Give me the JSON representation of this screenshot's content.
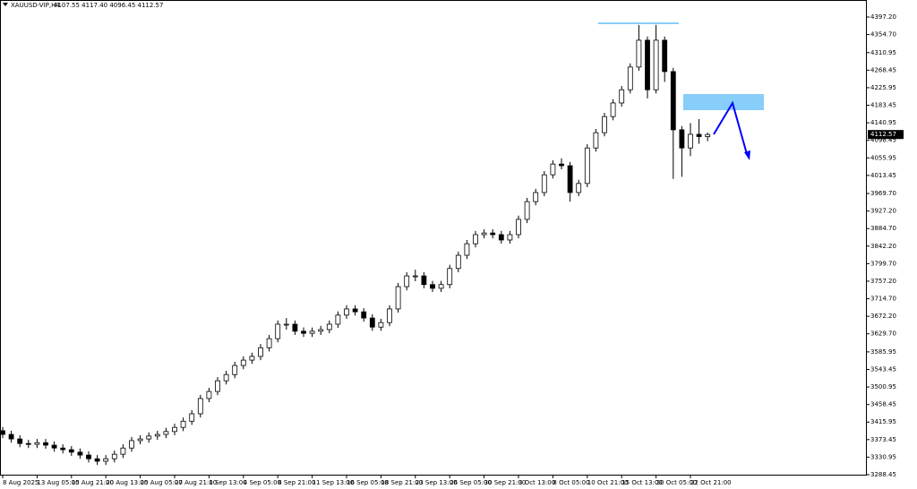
{
  "chart_data": {
    "type": "candlestick",
    "symbol": "XAUUSD-VIP,H4",
    "info": "4107.55 4117.40 4096.45 4112.57",
    "categories": [
      "8 Aug 2025",
      null,
      null,
      null,
      "13 Aug 05:00",
      null,
      null,
      null,
      "15 Aug 21:00",
      null,
      null,
      null,
      "20 Aug 13:00",
      null,
      null,
      null,
      "25 Aug 05:00",
      null,
      null,
      null,
      "27 Aug 21:00",
      null,
      null,
      null,
      "1 Sep 13:00",
      null,
      null,
      null,
      "4 Sep 05:00",
      null,
      null,
      null,
      "8 Sep 21:00",
      null,
      null,
      null,
      "11 Sep 13:00",
      null,
      null,
      null,
      "16 Sep 05:00",
      null,
      null,
      null,
      "18 Sep 21:00",
      null,
      null,
      null,
      "23 Sep 13:00",
      null,
      null,
      null,
      "26 Sep 05:00",
      null,
      null,
      null,
      "30 Sep 21:00",
      null,
      null,
      null,
      "3 Oct 13:00",
      null,
      null,
      null,
      "8 Oct 05:00",
      null,
      null,
      null,
      "10 Oct 21:00",
      null,
      null,
      null,
      "15 Oct 13:00",
      null,
      null,
      null,
      "20 Oct 05:00",
      null,
      null,
      null,
      "22 Oct 21:00",
      null,
      null
    ],
    "open": [
      3395,
      3386,
      3375,
      3364,
      3362,
      3366,
      3360,
      3353,
      3349,
      3343,
      3336,
      3327,
      3321,
      3327,
      3338,
      3353,
      3371,
      3375,
      3382,
      3386,
      3393,
      3403,
      3418,
      3436,
      3473,
      3490,
      3516,
      3531,
      3553,
      3566,
      3575,
      3596,
      3618,
      3653,
      3653,
      3636,
      3631,
      3636,
      3640,
      3653,
      3675,
      3690,
      3683,
      3668,
      3646,
      3657,
      3690,
      3744,
      3770,
      3770,
      3749,
      3740,
      3749,
      3788,
      3820,
      3848,
      3870,
      3874,
      3870,
      3857,
      3870,
      3907,
      3950,
      3972,
      4015,
      4041,
      4037,
      3972,
      3994,
      4080,
      4117,
      4156,
      4189,
      4221,
      4276,
      4341,
      4221,
      4341,
      4265,
      4124,
      4080,
      4113,
      4107.55
    ],
    "high": [
      3404,
      3395,
      3384,
      3373,
      3375,
      3375,
      3369,
      3362,
      3358,
      3352,
      3345,
      3336,
      3336,
      3347,
      3362,
      3380,
      3384,
      3391,
      3395,
      3402,
      3412,
      3427,
      3445,
      3482,
      3499,
      3525,
      3540,
      3562,
      3575,
      3584,
      3605,
      3627,
      3662,
      3668,
      3662,
      3645,
      3645,
      3649,
      3662,
      3684,
      3699,
      3699,
      3692,
      3677,
      3666,
      3699,
      3753,
      3779,
      3785,
      3779,
      3758,
      3758,
      3797,
      3829,
      3857,
      3879,
      3883,
      3883,
      3879,
      3879,
      3916,
      3959,
      3981,
      4024,
      4050,
      4055,
      4046,
      4003,
      4089,
      4126,
      4165,
      4198,
      4230,
      4285,
      4378,
      4350,
      4378,
      4350,
      4274,
      4133,
      4140,
      4150,
      4117.4
    ],
    "low": [
      3377,
      3366,
      3355,
      3353,
      3353,
      3351,
      3344,
      3340,
      3334,
      3327,
      3318,
      3312,
      3312,
      3318,
      3329,
      3344,
      3362,
      3366,
      3373,
      3377,
      3384,
      3394,
      3409,
      3427,
      3464,
      3481,
      3507,
      3522,
      3544,
      3557,
      3566,
      3587,
      3609,
      3640,
      3627,
      3622,
      3622,
      3627,
      3631,
      3644,
      3666,
      3674,
      3659,
      3637,
      3637,
      3648,
      3681,
      3735,
      3757,
      3740,
      3731,
      3731,
      3740,
      3779,
      3811,
      3839,
      3861,
      3861,
      3848,
      3848,
      3861,
      3898,
      3941,
      3963,
      4006,
      4028,
      3950,
      3963,
      3985,
      4071,
      4108,
      4147,
      4180,
      4212,
      4267,
      4200,
      4212,
      4240,
      4005,
      4010,
      4060,
      4090,
      4096.45
    ],
    "close": [
      3386,
      3375,
      3364,
      3362,
      3366,
      3360,
      3353,
      3349,
      3343,
      3336,
      3327,
      3321,
      3327,
      3338,
      3353,
      3371,
      3375,
      3382,
      3386,
      3393,
      3403,
      3418,
      3436,
      3473,
      3490,
      3516,
      3531,
      3553,
      3566,
      3575,
      3596,
      3618,
      3653,
      3653,
      3636,
      3631,
      3636,
      3640,
      3653,
      3675,
      3690,
      3683,
      3668,
      3646,
      3657,
      3690,
      3744,
      3770,
      3770,
      3749,
      3740,
      3749,
      3788,
      3820,
      3848,
      3870,
      3874,
      3870,
      3857,
      3870,
      3907,
      3950,
      3972,
      4015,
      4041,
      4037,
      3972,
      3994,
      4080,
      4117,
      4156,
      4189,
      4221,
      4276,
      4341,
      4221,
      4341,
      4265,
      4124,
      4080,
      4113,
      4107.55,
      4112.57
    ],
    "ylim": [
      3286.3,
      4427.6
    ],
    "yticks": [
      {
        "value": 4397.2,
        "label": "4397.20"
      },
      {
        "value": 4354.7,
        "label": "4354.70"
      },
      4310.95,
      4268.45,
      4225.95,
      4183.45,
      4140.95,
      4098.45,
      4055.95,
      4013.45,
      {
        "value": 3969.7,
        "label": "3969.70"
      },
      {
        "value": 3927.2,
        "label": "3927.20"
      },
      {
        "value": 3884.7,
        "label": "3884.70"
      },
      {
        "value": 3842.2,
        "label": "3842.20"
      },
      {
        "value": 3799.7,
        "label": "3799.70"
      },
      {
        "value": 3757.2,
        "label": "3757.20"
      },
      {
        "value": 3714.7,
        "label": "3714.70"
      },
      {
        "value": 3672.2,
        "label": "3672.20"
      },
      {
        "value": 3629.7,
        "label": "3629.70"
      },
      3585.95,
      3543.45,
      3500.95,
      3458.45,
      3415.95,
      3373.45,
      3330.95,
      3288.45
    ],
    "up_color": "#ffffff",
    "down_color": "#000000"
  }
}
